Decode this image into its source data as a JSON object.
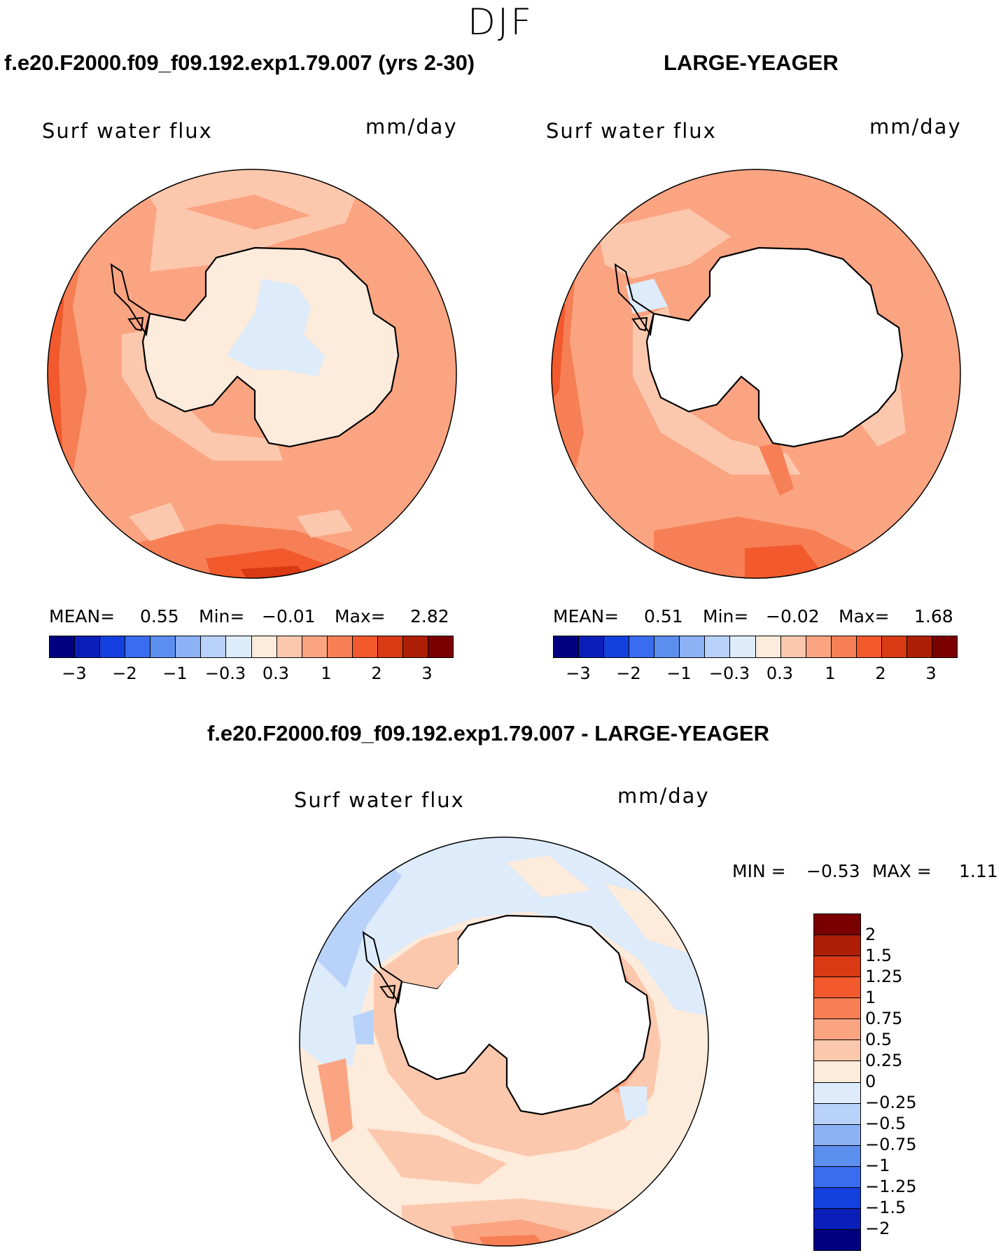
{
  "season": "DJF",
  "panels": {
    "model": {
      "title": "f.e20.F2000.f09_f09.192.exp1.79.007 (yrs 2-30)",
      "variable": "Surf water flux",
      "units": "mm/day",
      "stats": {
        "mean_label": "MEAN=",
        "mean": "0.55",
        "min_label": "Min=",
        "min": "−0.01",
        "max_label": "Max=",
        "max": "2.82"
      }
    },
    "obs": {
      "title": "LARGE-YEAGER",
      "variable": "Surf water flux",
      "units": "mm/day",
      "stats": {
        "mean_label": "MEAN=",
        "mean": "0.51",
        "min_label": "Min=",
        "min": "−0.02",
        "max_label": "Max=",
        "max": "1.68"
      }
    },
    "diff": {
      "title": "f.e20.F2000.f09_f09.192.exp1.79.007 - LARGE-YEAGER",
      "variable": "Surf water flux",
      "units": "mm/day",
      "minmax": {
        "min_label": "MIN =",
        "min": "−0.53",
        "max_label": "MAX =",
        "max": "1.11"
      }
    }
  },
  "colorbar_main": {
    "colors": [
      "#000080",
      "#0a1fb8",
      "#1440e0",
      "#3a6cf0",
      "#5c8ef0",
      "#8cb1f5",
      "#b9d2fa",
      "#ddebfb",
      "#fdebdb",
      "#fcc8ad",
      "#fba482",
      "#f77f55",
      "#f2592d",
      "#d93a14",
      "#ad1f07",
      "#7a0000"
    ],
    "tick_labels": [
      "−3",
      "−2",
      "−1",
      "−0.3",
      "0.3",
      "1",
      "2",
      "3"
    ]
  },
  "colorbar_diff": {
    "colors": [
      "#7a0000",
      "#ad1f07",
      "#d93a14",
      "#f2592d",
      "#f77f55",
      "#fba482",
      "#fcc8ad",
      "#fdebdb",
      "#ddebfb",
      "#b9d2fa",
      "#8cb1f5",
      "#5c8ef0",
      "#3a6cf0",
      "#1440e0",
      "#0a1fb8",
      "#000080"
    ],
    "tick_labels": [
      "2",
      "1.5",
      "1.25",
      "1",
      "0.75",
      "0.5",
      "0.25",
      "0",
      "−0.25",
      "−0.5",
      "−0.75",
      "−1",
      "−1.25",
      "−1.5",
      "−2"
    ]
  }
}
